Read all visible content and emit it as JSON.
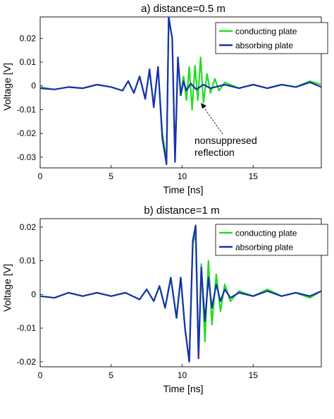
{
  "chart_data": [
    {
      "type": "line",
      "title": "a) distance=0.5 m",
      "xlabel": "Time [ns]",
      "ylabel": "Voltage [V]",
      "xlim": [
        0,
        19.8
      ],
      "ylim": [
        -0.0345,
        0.029
      ],
      "x_ticks": [
        0,
        5,
        10,
        15
      ],
      "y_ticks": [
        0.02,
        0.01,
        0,
        -0.01,
        -0.02,
        -0.03
      ],
      "y_tick_labels": [
        "0.02",
        "0.01",
        "0",
        "-0.01",
        "-0.02",
        "-0.03"
      ],
      "grid": false,
      "legend": "top-right",
      "annotation": {
        "lines": [
          "nonsuppresed",
          "reflection"
        ],
        "points_to": [
          11.1,
          -0.0052
        ]
      },
      "series": [
        {
          "name": "conducting plate",
          "color": "#22dd22",
          "points": [
            [
              0,
              -0.0005
            ],
            [
              1,
              -0.0015
            ],
            [
              2,
              -0.0005
            ],
            [
              3,
              -0.001
            ],
            [
              4,
              0.0005
            ],
            [
              5,
              -0.0005
            ],
            [
              5.8,
              -0.002
            ],
            [
              6.2,
              0.002
            ],
            [
              6.6,
              -0.003
            ],
            [
              7,
              0.004
            ],
            [
              7.4,
              -0.005
            ],
            [
              7.7,
              0.006
            ],
            [
              8,
              -0.008
            ],
            [
              8.3,
              0.008
            ],
            [
              8.6,
              -0.02
            ],
            [
              8.9,
              -0.031
            ],
            [
              9.05,
              0.028
            ],
            [
              9.3,
              0.02
            ],
            [
              9.5,
              -0.03
            ],
            [
              9.7,
              0.012
            ],
            [
              9.9,
              -0.004
            ],
            [
              10.1,
              0.004
            ],
            [
              10.3,
              -0.006
            ],
            [
              10.5,
              0.008
            ],
            [
              10.7,
              -0.01
            ],
            [
              10.9,
              0.0085
            ],
            [
              11.1,
              -0.006
            ],
            [
              11.3,
              0.012
            ],
            [
              11.5,
              -0.007
            ],
            [
              11.75,
              0.005
            ],
            [
              12,
              -0.003
            ],
            [
              12.3,
              0.003
            ],
            [
              12.6,
              -0.002
            ],
            [
              13,
              0.0015
            ],
            [
              14,
              -0.001
            ],
            [
              15,
              0.0005
            ],
            [
              16,
              -0.001
            ],
            [
              17,
              0.0005
            ],
            [
              18,
              -0.0005
            ],
            [
              19,
              0.002
            ],
            [
              19.8,
              0.0005
            ]
          ]
        },
        {
          "name": "absorbing plate",
          "color": "#1a2fb0",
          "points": [
            [
              0,
              -0.001
            ],
            [
              1,
              -0.0015
            ],
            [
              2,
              -0.0005
            ],
            [
              3,
              -0.001
            ],
            [
              4,
              0.0005
            ],
            [
              5,
              -0.0005
            ],
            [
              5.8,
              -0.002
            ],
            [
              6.2,
              0.002
            ],
            [
              6.6,
              -0.003
            ],
            [
              7,
              0.004
            ],
            [
              7.4,
              -0.0055
            ],
            [
              7.7,
              0.007
            ],
            [
              8,
              -0.009
            ],
            [
              8.3,
              0.008
            ],
            [
              8.6,
              -0.022
            ],
            [
              8.9,
              -0.033
            ],
            [
              9.05,
              0.029
            ],
            [
              9.3,
              0.02
            ],
            [
              9.5,
              -0.032
            ],
            [
              9.7,
              0.012
            ],
            [
              9.9,
              -0.004
            ],
            [
              10.1,
              0.002
            ],
            [
              10.3,
              -0.002
            ],
            [
              10.6,
              0.001
            ],
            [
              11,
              -0.0015
            ],
            [
              11.5,
              0.0005
            ],
            [
              12,
              -0.001
            ],
            [
              13,
              0.0005
            ],
            [
              14,
              -0.001
            ],
            [
              15,
              0.0005
            ],
            [
              16,
              -0.001
            ],
            [
              17,
              0.0005
            ],
            [
              18,
              -0.0005
            ],
            [
              19,
              0.0015
            ],
            [
              19.8,
              -0.0005
            ]
          ]
        }
      ]
    },
    {
      "type": "line",
      "title": "b) distance=1 m",
      "xlabel": "Time [ns]",
      "ylabel": "Voltage [V]",
      "xlim": [
        0,
        19.8
      ],
      "ylim": [
        -0.0215,
        0.0225
      ],
      "x_ticks": [
        0,
        5,
        10,
        15
      ],
      "y_ticks": [
        0.02,
        0.01,
        0,
        -0.01,
        -0.02
      ],
      "y_tick_labels": [
        "0.02",
        "0.01",
        "0",
        "-0.01",
        "-0.02"
      ],
      "grid": false,
      "legend": "top-right",
      "series": [
        {
          "name": "conducting plate",
          "color": "#22dd22",
          "points": [
            [
              0,
              -0.0005
            ],
            [
              1,
              -0.001
            ],
            [
              2,
              0.0005
            ],
            [
              3,
              -0.0005
            ],
            [
              4,
              0.0005
            ],
            [
              5,
              -0.0005
            ],
            [
              6,
              0.0005
            ],
            [
              7,
              -0.0015
            ],
            [
              7.5,
              0.0015
            ],
            [
              8,
              -0.002
            ],
            [
              8.4,
              0.0025
            ],
            [
              8.8,
              -0.004
            ],
            [
              9.2,
              0.005
            ],
            [
              9.6,
              -0.007
            ],
            [
              9.9,
              0.005
            ],
            [
              10.2,
              -0.01
            ],
            [
              10.5,
              -0.02
            ],
            [
              10.75,
              0.015
            ],
            [
              10.95,
              0.018
            ],
            [
              11.15,
              -0.018
            ],
            [
              11.35,
              0.009
            ],
            [
              11.6,
              -0.014
            ],
            [
              11.85,
              0.01
            ],
            [
              12.1,
              -0.009
            ],
            [
              12.4,
              0.006
            ],
            [
              12.7,
              -0.005
            ],
            [
              13,
              0.003
            ],
            [
              13.4,
              -0.002
            ],
            [
              14,
              0.001
            ],
            [
              15,
              -0.0005
            ],
            [
              16,
              0.0015
            ],
            [
              17,
              -0.0005
            ],
            [
              18,
              0.0005
            ],
            [
              19,
              -0.001
            ],
            [
              19.8,
              0.001
            ]
          ]
        },
        {
          "name": "absorbing plate",
          "color": "#1a2fb0",
          "points": [
            [
              0,
              -0.0005
            ],
            [
              1,
              -0.001
            ],
            [
              2,
              0.0005
            ],
            [
              3,
              -0.0005
            ],
            [
              4,
              0.0005
            ],
            [
              5,
              -0.0005
            ],
            [
              6,
              0.0005
            ],
            [
              7,
              -0.0015
            ],
            [
              7.5,
              0.0015
            ],
            [
              8,
              -0.002
            ],
            [
              8.4,
              0.0025
            ],
            [
              8.8,
              -0.004
            ],
            [
              9.2,
              0.005
            ],
            [
              9.6,
              -0.007
            ],
            [
              9.9,
              0.005
            ],
            [
              10.2,
              -0.01
            ],
            [
              10.5,
              -0.02
            ],
            [
              10.75,
              0.016
            ],
            [
              10.95,
              0.0205
            ],
            [
              11.15,
              -0.019
            ],
            [
              11.35,
              0.008
            ],
            [
              11.6,
              -0.008
            ],
            [
              11.85,
              0.005
            ],
            [
              12.1,
              -0.004
            ],
            [
              12.4,
              0.003
            ],
            [
              12.7,
              -0.002
            ],
            [
              13,
              0.0015
            ],
            [
              13.4,
              -0.001
            ],
            [
              14,
              0.0005
            ],
            [
              15,
              -0.0005
            ],
            [
              16,
              0.001
            ],
            [
              17,
              -0.0005
            ],
            [
              18,
              0.0005
            ],
            [
              19,
              -0.0005
            ],
            [
              19.8,
              0.001
            ]
          ]
        }
      ]
    }
  ]
}
